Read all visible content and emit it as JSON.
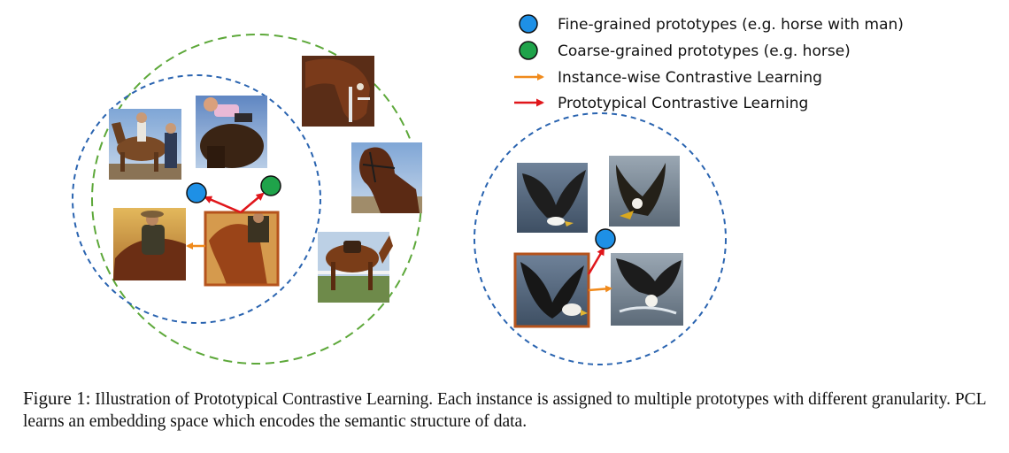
{
  "legend": {
    "fine": "Fine-grained prototypes (e.g. horse with man)",
    "coarse": "Coarse-grained prototypes (e.g. horse)",
    "instance": "Instance-wise Contrastive Learning",
    "prototypical": "Prototypical Contrastive Learning"
  },
  "colors": {
    "fine_prototype": "#1e90e6",
    "coarse_prototype": "#1fa34a",
    "instance_arrow": "#f08a1c",
    "prototypical_arrow": "#e0161b",
    "fine_cluster_border": "#2a64b0",
    "coarse_cluster_border": "#5da83a",
    "anchor_border": "#b5531c"
  },
  "images": {
    "horses": [
      "horse-rider-parade",
      "man-on-horse",
      "brown-horse-head",
      "horse-with-bridle",
      "cowboy-on-horse",
      "anchor-horse-riders",
      "saddled-horse"
    ],
    "eagles": [
      "eagle-wings-spread",
      "eagle-landing",
      "anchor-eagle",
      "eagle-catching-fish"
    ]
  },
  "caption": {
    "label": "Figure 1:",
    "text": "Illustration of Prototypical Contrastive Learning. Each instance is assigned to multiple prototypes with different granularity. PCL learns an embedding space which encodes the semantic structure of data."
  }
}
